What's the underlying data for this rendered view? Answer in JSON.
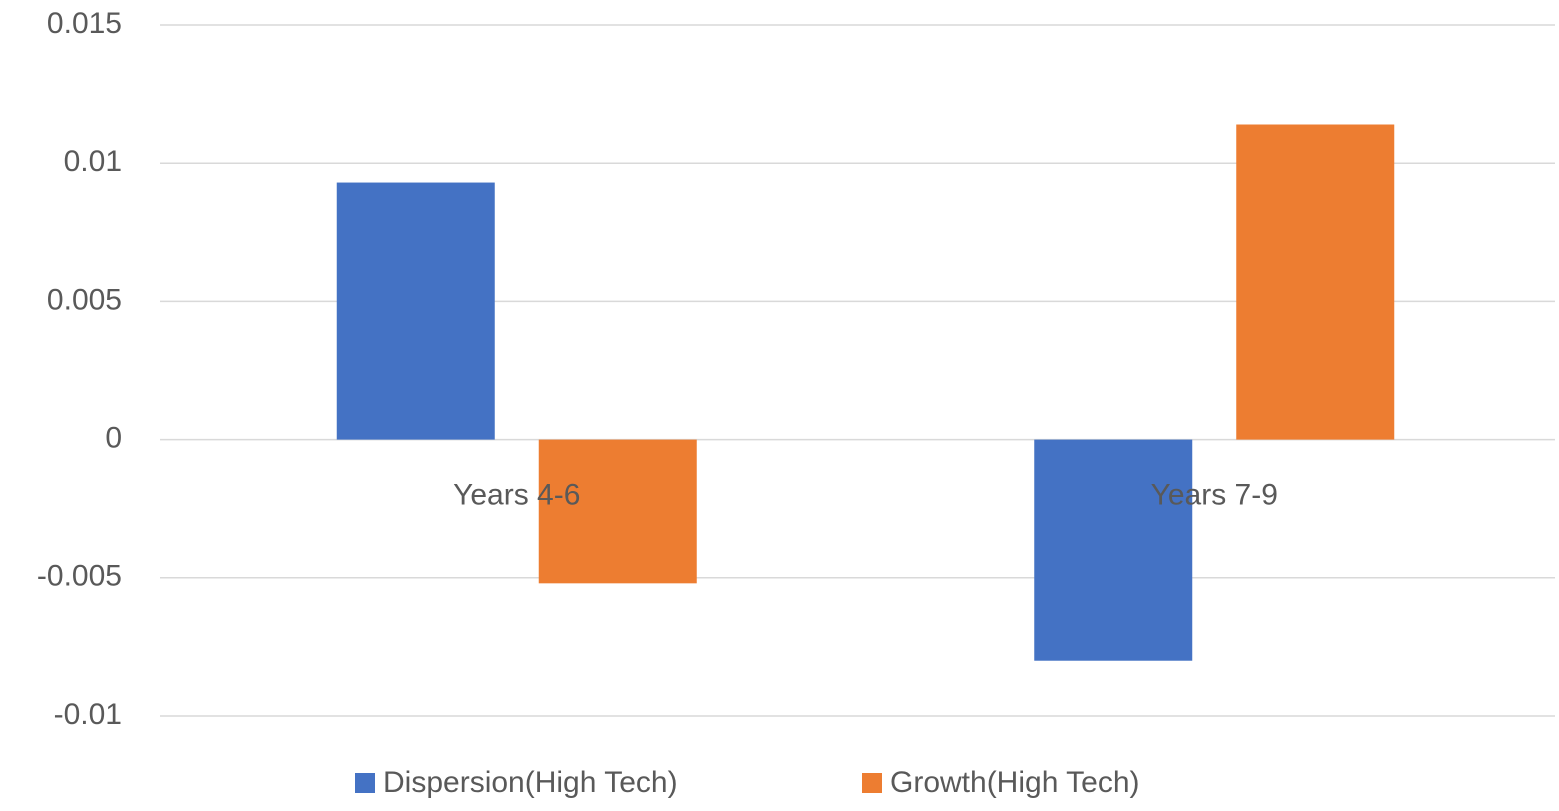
{
  "chart_data": {
    "type": "bar",
    "categories": [
      "Years 4-6",
      "Years 7-9"
    ],
    "series": [
      {
        "name": "Dispersion(High Tech)",
        "color": "#4472c4",
        "values": [
          0.0093,
          -0.008
        ]
      },
      {
        "name": "Growth(High Tech)",
        "color": "#ed7d31",
        "values": [
          -0.0052,
          0.0114
        ]
      }
    ],
    "ylim": [
      -0.01,
      0.015
    ],
    "yticks": [
      -0.01,
      -0.005,
      0,
      0.005,
      0.01,
      0.015
    ],
    "grid": true,
    "legend": "bottom"
  }
}
